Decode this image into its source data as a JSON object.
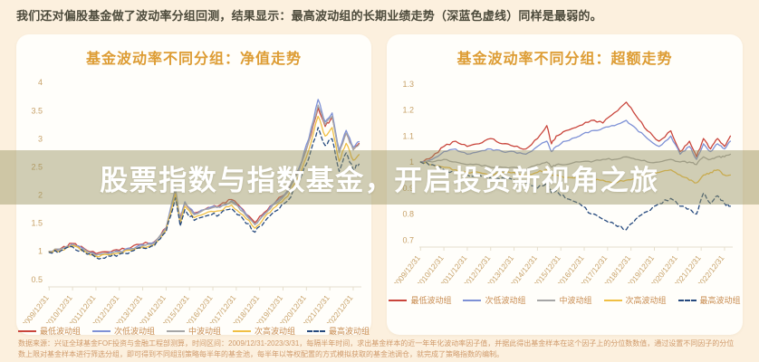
{
  "header": {
    "text": "我们还对偏股基金做了波动率分组回测，结果显示：最高波动组的长期业绩走势（深蓝色虚线）同样是最弱的。"
  },
  "banner": {
    "text": "股票指数与指数基金，开启投资新视角之旅",
    "background": "rgba(151,146,95,0.45)",
    "text_color": "#ffffff"
  },
  "footnote": {
    "text": "数据来源：兴证全球基金FOF投资与金融工程部测算，时间区间：2009/12/31-2023/3/31，每隔半年时间，求出基金样本的近一年年化波动率因子值，并据此得出基金样本在这个因子上的分位数数值，通过设置不同因子的分位数上限对基金样本进行筛选分组，即可得到不同组别策略每半年的基金池，每半年以等权配置的方式模拟获取的基金池调仓，就完成了策略指数的编制。"
  },
  "colors": {
    "background": "#fcf0de",
    "card": "#fffefa",
    "title_accent": "#dd9c33",
    "axis_label": "#c7a168",
    "legend_text": "#c98d52",
    "header_text": "#4c4a3b",
    "footnote_text": "#cf9a6b"
  },
  "chart_data": [
    {
      "type": "line",
      "title": "基金波动率不同分组：净值走势",
      "xlabel": "",
      "ylabel": "",
      "ylim": [
        0.4,
        4.1
      ],
      "yticks": [
        "4",
        "3.5",
        "3",
        "2.5",
        "2",
        "1.5",
        "1",
        "0.5"
      ],
      "grid": false,
      "legend_position": "bottom",
      "x": [
        2010.0,
        2010.5,
        2011.0,
        2011.5,
        2012.0,
        2012.5,
        2013.0,
        2013.5,
        2014.0,
        2014.5,
        2015.0,
        2015.4,
        2015.6,
        2015.8,
        2016.2,
        2016.8,
        2017.3,
        2017.8,
        2018.3,
        2018.8,
        2019.2,
        2019.7,
        2020.2,
        2020.7,
        2021.1,
        2021.5,
        2021.8,
        2022.1,
        2022.4,
        2022.7,
        2023.0,
        2023.25
      ],
      "x_ticks": [
        2010,
        2011,
        2012,
        2013,
        2014,
        2015,
        2016,
        2017,
        2018,
        2019,
        2020,
        2021,
        2022,
        2023
      ],
      "x_tick_labels": [
        "2009/12/31",
        "2010/12/31",
        "2011/12/31",
        "2012/12/31",
        "2013/12/31",
        "2014/12/31",
        "2015/12/31",
        "2016/12/31",
        "2017/12/31",
        "2018/12/31",
        "2019/12/31",
        "2020/12/31",
        "2021/12/31",
        "2022/12/31"
      ],
      "series": [
        {
          "name": "最低波动组",
          "color": "#c9453c",
          "dash": false,
          "values": [
            1.0,
            1.05,
            1.14,
            1.05,
            0.96,
            0.99,
            1.02,
            1.07,
            1.13,
            1.17,
            1.42,
            2.05,
            1.58,
            1.86,
            1.68,
            1.78,
            1.82,
            1.92,
            1.74,
            1.51,
            1.69,
            1.89,
            2.08,
            2.48,
            2.95,
            3.55,
            3.22,
            3.38,
            2.78,
            3.1,
            2.82,
            2.92
          ]
        },
        {
          "name": "次低波动组",
          "color": "#7e91d6",
          "dash": false,
          "values": [
            1.0,
            1.04,
            1.13,
            1.04,
            0.94,
            0.97,
            1.0,
            1.05,
            1.12,
            1.16,
            1.42,
            2.12,
            1.57,
            1.88,
            1.67,
            1.77,
            1.8,
            1.9,
            1.72,
            1.48,
            1.67,
            1.88,
            2.08,
            2.5,
            3.0,
            3.7,
            3.3,
            3.46,
            2.8,
            3.15,
            2.85,
            2.95
          ]
        },
        {
          "name": "中波动组",
          "color": "#a6a6a6",
          "dash": false,
          "values": [
            1.0,
            1.04,
            1.12,
            1.03,
            0.93,
            0.96,
            0.99,
            1.04,
            1.1,
            1.14,
            1.4,
            2.1,
            1.55,
            1.85,
            1.65,
            1.75,
            1.78,
            1.88,
            1.7,
            1.47,
            1.65,
            1.85,
            2.05,
            2.45,
            2.95,
            3.6,
            3.25,
            3.4,
            2.75,
            3.1,
            2.8,
            2.9
          ]
        },
        {
          "name": "次高波动组",
          "color": "#f0bf43",
          "dash": false,
          "values": [
            0.99,
            1.02,
            1.1,
            1.01,
            0.91,
            0.94,
            0.97,
            1.02,
            1.08,
            1.12,
            1.38,
            2.02,
            1.5,
            1.8,
            1.6,
            1.7,
            1.72,
            1.82,
            1.64,
            1.41,
            1.6,
            1.8,
            1.98,
            2.35,
            2.8,
            3.4,
            3.05,
            3.2,
            2.6,
            2.92,
            2.62,
            2.72
          ]
        },
        {
          "name": "最高波动组",
          "color": "#25497e",
          "dash": true,
          "values": [
            0.98,
            1.01,
            1.08,
            0.99,
            0.89,
            0.92,
            0.95,
            1.0,
            1.06,
            1.1,
            1.35,
            1.95,
            1.45,
            1.74,
            1.55,
            1.64,
            1.66,
            1.76,
            1.57,
            1.34,
            1.52,
            1.72,
            1.9,
            2.25,
            2.65,
            3.2,
            2.88,
            3.0,
            2.42,
            2.75,
            2.45,
            2.55
          ]
        }
      ]
    },
    {
      "type": "line",
      "title": "基金波动率不同分组：超额走势",
      "xlabel": "",
      "ylabel": "",
      "ylim": [
        0.68,
        1.32
      ],
      "yticks": [
        "1.3",
        "1.2",
        "1.1",
        "1",
        "0.9",
        "0.8",
        "0.7"
      ],
      "grid": false,
      "legend_position": "bottom",
      "x": [
        2010.0,
        2010.5,
        2011.0,
        2011.5,
        2012.0,
        2012.5,
        2013.0,
        2013.5,
        2014.0,
        2014.5,
        2015.0,
        2015.4,
        2015.6,
        2015.8,
        2016.2,
        2016.8,
        2017.3,
        2017.8,
        2018.3,
        2018.8,
        2019.2,
        2019.7,
        2020.2,
        2020.7,
        2021.1,
        2021.5,
        2021.8,
        2022.1,
        2022.4,
        2022.7,
        2023.0,
        2023.25
      ],
      "x_ticks": [
        2010,
        2011,
        2012,
        2013,
        2014,
        2015,
        2016,
        2017,
        2018,
        2019,
        2020,
        2021,
        2022,
        2023
      ],
      "x_tick_labels": [
        "2009/12/31",
        "2010/12/31",
        "2011/12/31",
        "2012/12/31",
        "2013/12/31",
        "2014/12/31",
        "2015/12/31",
        "2016/12/31",
        "2017/12/31",
        "2018/12/31",
        "2019/12/31",
        "2020/12/31",
        "2021/12/31",
        "2022/12/31"
      ],
      "series": [
        {
          "name": "最低波动组",
          "color": "#c9453c",
          "dash": false,
          "values": [
            1.0,
            1.02,
            1.06,
            1.08,
            1.06,
            1.07,
            1.09,
            1.07,
            1.06,
            1.05,
            1.09,
            1.14,
            1.07,
            1.1,
            1.12,
            1.14,
            1.16,
            1.15,
            1.19,
            1.23,
            1.18,
            1.12,
            1.08,
            1.12,
            1.04,
            1.08,
            1.02,
            1.09,
            1.05,
            1.09,
            1.06,
            1.1
          ]
        },
        {
          "name": "次低波动组",
          "color": "#7e91d6",
          "dash": false,
          "values": [
            1.0,
            1.01,
            1.04,
            1.05,
            1.03,
            1.04,
            1.05,
            1.04,
            1.04,
            1.03,
            1.06,
            1.08,
            1.04,
            1.06,
            1.08,
            1.1,
            1.12,
            1.13,
            1.14,
            1.16,
            1.13,
            1.09,
            1.06,
            1.1,
            1.03,
            1.06,
            1.01,
            1.07,
            1.04,
            1.07,
            1.05,
            1.08
          ]
        },
        {
          "name": "中波动组",
          "color": "#a6a6a6",
          "dash": false,
          "values": [
            1.0,
            1.0,
            1.01,
            1.0,
            0.99,
            0.99,
            0.98,
            0.98,
            0.98,
            0.97,
            0.99,
            1.0,
            0.98,
            0.99,
            0.99,
            1.0,
            1.0,
            1.01,
            1.01,
            1.02,
            1.01,
            1.0,
            1.0,
            1.01,
            1.0,
            1.0,
            0.99,
            1.02,
            1.01,
            1.02,
            1.02,
            1.03
          ]
        },
        {
          "name": "次高波动组",
          "color": "#f0bf43",
          "dash": false,
          "values": [
            1.0,
            0.99,
            0.98,
            0.97,
            0.96,
            0.96,
            0.95,
            0.96,
            0.96,
            0.95,
            0.96,
            0.97,
            0.95,
            0.95,
            0.94,
            0.94,
            0.93,
            0.93,
            0.92,
            0.93,
            0.94,
            0.95,
            0.96,
            0.97,
            0.95,
            0.93,
            0.92,
            0.95,
            0.96,
            0.97,
            0.95,
            0.95
          ]
        },
        {
          "name": "最高波动组",
          "color": "#25497e",
          "dash": true,
          "values": [
            1.0,
            0.99,
            0.97,
            0.96,
            0.95,
            0.95,
            0.94,
            0.94,
            0.93,
            0.92,
            0.9,
            0.92,
            0.88,
            0.89,
            0.86,
            0.84,
            0.8,
            0.78,
            0.76,
            0.74,
            0.78,
            0.81,
            0.84,
            0.86,
            0.83,
            0.82,
            0.8,
            0.88,
            0.84,
            0.87,
            0.84,
            0.83
          ]
        }
      ]
    }
  ]
}
